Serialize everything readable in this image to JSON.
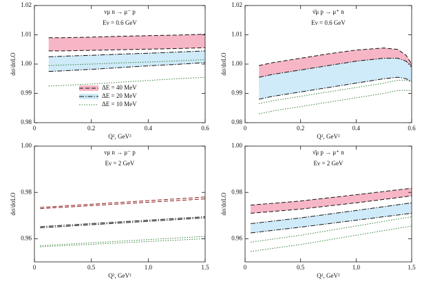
{
  "chart_data": [
    {
      "type": "line",
      "title": "νμ n → μ⁻ p",
      "subtitle": "Eν = 0.6 GeV",
      "xlabel": "Q², GeV²",
      "ylabel": "dσ/dσLO",
      "x": [
        0.05,
        0.1,
        0.2,
        0.3,
        0.4,
        0.5,
        0.6
      ],
      "xlim": [
        0,
        0.6
      ],
      "ylim": [
        0.98,
        1.02
      ],
      "xticks": [
        0,
        0.2,
        0.4,
        0.6
      ],
      "yticks": [
        0.98,
        0.99,
        {
          "value": 1,
          "label": "1.00"
        },
        1.01,
        1.02
      ],
      "legend": "lower left",
      "series": [
        {
          "name": "ΔE = 40 MeV",
          "color": "#111111",
          "fill": "#f7b6c6",
          "dash": "dashed",
          "upper": [
            1.009,
            1.009,
            1.0092,
            1.0095,
            1.0097,
            1.0099,
            1.0102
          ],
          "lower": [
            1.0045,
            1.0045,
            1.0047,
            1.0049,
            1.0051,
            1.0053,
            1.0056
          ]
        },
        {
          "name": "ΔE = 20 MeV",
          "color": "#111111",
          "fill": "#cfeaf8",
          "dash": "dashdot",
          "upper": [
            1.0025,
            1.0027,
            1.003,
            1.0034,
            1.0037,
            1.0041,
            1.0045
          ],
          "lower": [
            0.9975,
            0.9977,
            0.9982,
            0.9988,
            0.9994,
            0.9999,
            1.0005
          ]
        },
        {
          "name": "ΔE = 10 MeV",
          "color": "#2e7d32",
          "dash": "dotted",
          "upper": [
            0.9995,
            0.9997,
            1.0,
            1.0004,
            1.0007,
            1.0011,
            1.0015
          ],
          "lower": [
            0.9925,
            0.9927,
            0.9932,
            0.9938,
            0.9944,
            0.995,
            0.9955
          ]
        }
      ]
    },
    {
      "type": "line",
      "title": "ν̄μ p → μ⁺ n",
      "subtitle": "Eν = 0.6 GeV",
      "xlabel": "Q², GeV²",
      "ylabel": "dσ/dσLO",
      "x": [
        0.05,
        0.1,
        0.2,
        0.3,
        0.4,
        0.5,
        0.55,
        0.58,
        0.6
      ],
      "xlim": [
        0,
        0.6
      ],
      "ylim": [
        0.98,
        1.02
      ],
      "xticks": [
        0,
        0.2,
        0.4,
        0.6
      ],
      "yticks": [
        0.98,
        0.99,
        {
          "value": 1,
          "label": "1.00"
        },
        1.01,
        1.02
      ],
      "series": [
        {
          "color": "#111111",
          "fill": "#f7b6c6",
          "dash": "dashed",
          "upper": [
            0.9995,
            1.0005,
            1.002,
            1.0035,
            1.0048,
            1.0055,
            1.005,
            1.003,
            1.0
          ],
          "lower": [
            0.9925,
            0.9935,
            0.995,
            0.997,
            0.9985,
            0.9995,
            0.9995,
            0.999,
            0.998
          ]
        },
        {
          "color": "#111111",
          "fill": "#cfeaf8",
          "dash": "dashdot",
          "upper": [
            0.9955,
            0.9965,
            0.998,
            0.9995,
            1.001,
            1.002,
            1.002,
            1.001,
            0.999
          ],
          "lower": [
            0.988,
            0.989,
            0.9905,
            0.992,
            0.9935,
            0.995,
            0.9955,
            0.995,
            0.994
          ]
        },
        {
          "color": "#2e7d32",
          "dash": "dotted",
          "upper": [
            0.9865,
            0.9875,
            0.989,
            0.9905,
            0.992,
            0.9935,
            0.9945,
            0.9945,
            0.994
          ],
          "lower": [
            0.983,
            0.984,
            0.9855,
            0.987,
            0.9885,
            0.99,
            0.991,
            0.991,
            0.991
          ]
        }
      ]
    },
    {
      "type": "line",
      "title": "νμ n → μ⁻ p",
      "subtitle": "Eν = 2 GeV",
      "xlabel": "Q², GeV²",
      "ylabel": "dσ/dσLO",
      "x": [
        0.05,
        1.5
      ],
      "xlim": [
        0,
        1.5
      ],
      "ylim": [
        0.95,
        1
      ],
      "xticks": [
        0,
        0.5,
        {
          "value": 1,
          "label": "1.0"
        },
        1.5
      ],
      "yticks": [
        0.96,
        0.98,
        {
          "value": 1,
          "label": "1.00"
        }
      ],
      "series": [
        {
          "color": "#8b1a1a",
          "dash": "dashed",
          "upper": [
            0.9735,
            0.978
          ],
          "lower": [
            0.973,
            0.9772
          ]
        },
        {
          "color": "#111111",
          "dash": "dashdot",
          "upper": [
            0.9652,
            0.9695
          ],
          "lower": [
            0.9647,
            0.969
          ]
        },
        {
          "color": "#2e7d32",
          "dash": "dotted",
          "upper": [
            0.957,
            0.961
          ],
          "lower": [
            0.9565,
            0.96
          ]
        }
      ]
    },
    {
      "type": "line",
      "title": "ν̄μ p → μ⁺ n",
      "subtitle": "Eν = 2 GeV",
      "xlabel": "Q², GeV²",
      "ylabel": "dσ/dσLO",
      "x": [
        0.05,
        0.5,
        1.0,
        1.5
      ],
      "xlim": [
        0,
        1.5
      ],
      "ylim": [
        0.95,
        1
      ],
      "xticks": [
        0,
        0.5,
        {
          "value": 1,
          "label": "1.0"
        },
        1.5
      ],
      "yticks": [
        0.96,
        0.98,
        {
          "value": 1,
          "label": "1.00"
        }
      ],
      "series": [
        {
          "color": "#111111",
          "fill": "#f7b6c6",
          "dash": "dashed",
          "upper": [
            0.9745,
            0.9763,
            0.979,
            0.9818
          ],
          "lower": [
            0.971,
            0.9728,
            0.9755,
            0.9785
          ]
        },
        {
          "color": "#111111",
          "fill": "#cfeaf8",
          "dash": "dashdot",
          "upper": [
            0.9665,
            0.969,
            0.9722,
            0.9755
          ],
          "lower": [
            0.9625,
            0.965,
            0.968,
            0.971
          ]
        },
        {
          "color": "#2e7d32",
          "dash": "dotted",
          "upper": [
            0.9585,
            0.9615,
            0.9655,
            0.9695
          ],
          "lower": [
            0.9545,
            0.9575,
            0.9615,
            0.9655
          ]
        }
      ]
    }
  ]
}
